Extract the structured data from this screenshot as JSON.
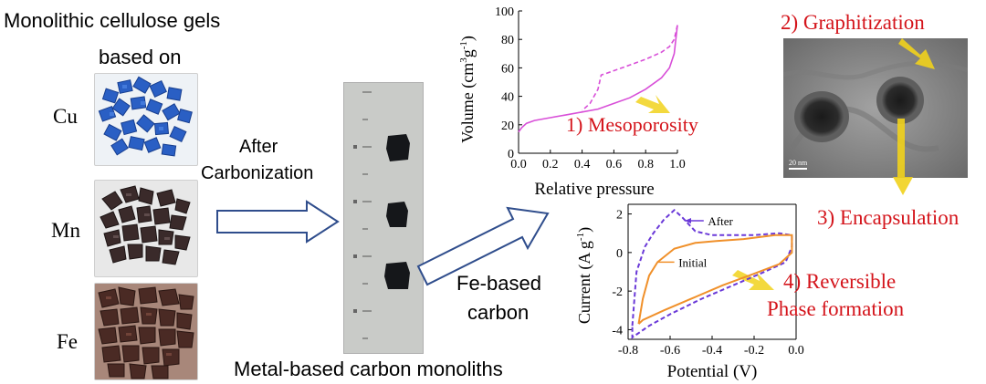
{
  "left_panel": {
    "title_line1": "Monolithic cellulose gels",
    "title_line2": "based on",
    "metals": [
      "Cu",
      "Mn",
      "Fe"
    ]
  },
  "arrow1_label_line1": "After",
  "arrow1_label_line2": "Carbonization",
  "monolith_caption": "Metal-based carbon monoliths",
  "arrow2_label_line1": "Fe-based",
  "arrow2_label_line2": "carbon",
  "steps": {
    "mesoporosity": "1) Mesoporosity",
    "graphitization": "2) Graphitization",
    "encapsulation": "3) Encapsulation",
    "reversible_line1": "4) Reversible",
    "reversible_line2": "Phase formation"
  },
  "tem_scale_label": "20 nm",
  "colors": {
    "step_red": "#d4141b",
    "arrow_blue": "#2f4d8c",
    "highlight_yellow": "#f1d21c",
    "iso_magenta": "#d84fd8",
    "cv_after": "#6a39d8",
    "cv_initial": "#f0902a"
  },
  "chart_data": [
    {
      "type": "line",
      "title": "",
      "xlabel": "Relative pressure",
      "ylabel": "Volume (cm³g⁻¹)",
      "ylabel_parts": {
        "main": "Volume (cm",
        "sup1": "3",
        "mid": "g",
        "sup2": "-1",
        "end": ")"
      },
      "xlim": [
        0,
        1.0
      ],
      "ylim": [
        0,
        100
      ],
      "xticks": [
        "0.0",
        "0.2",
        "0.4",
        "0.6",
        "0.8",
        "1.0"
      ],
      "yticks": [
        "0",
        "20",
        "40",
        "60",
        "80",
        "100"
      ],
      "series": [
        {
          "style": "solid",
          "x": [
            0.0,
            0.02,
            0.05,
            0.1,
            0.2,
            0.3,
            0.4,
            0.5,
            0.6,
            0.7,
            0.8,
            0.9,
            0.95,
            0.98,
            1.0
          ],
          "y": [
            15,
            18,
            21,
            23,
            25,
            27,
            29,
            31,
            35,
            39,
            45,
            53,
            60,
            70,
            90
          ]
        },
        {
          "style": "dashed",
          "x": [
            1.0,
            0.98,
            0.95,
            0.9,
            0.8,
            0.7,
            0.6,
            0.55,
            0.52,
            0.5,
            0.45,
            0.4
          ],
          "y": [
            90,
            80,
            75,
            71,
            66,
            62,
            58,
            56,
            55,
            45,
            35,
            30
          ]
        }
      ]
    },
    {
      "type": "line",
      "title": "",
      "xlabel": "Potential (V)",
      "ylabel": "Current (A g⁻¹)",
      "ylabel_parts": {
        "main": "Current (A g",
        "sup": "-1",
        "end": ")"
      },
      "xlim": [
        -0.8,
        0.0
      ],
      "ylim": [
        -4.5,
        2.5
      ],
      "xticks": [
        "-0.8",
        "-0.6",
        "-0.4",
        "-0.2",
        "0.0"
      ],
      "yticks": [
        "-4",
        "-2",
        "0",
        "2"
      ],
      "series": [
        {
          "name": "After",
          "style": "dashed",
          "points": [
            [
              -0.78,
              -3.8
            ],
            [
              -0.76,
              -1.0
            ],
            [
              -0.72,
              0.3
            ],
            [
              -0.68,
              1.0
            ],
            [
              -0.63,
              1.7
            ],
            [
              -0.58,
              2.2
            ],
            [
              -0.54,
              1.8
            ],
            [
              -0.48,
              1.1
            ],
            [
              -0.4,
              0.9
            ],
            [
              -0.3,
              0.9
            ],
            [
              -0.2,
              0.9
            ],
            [
              -0.08,
              1.0
            ],
            [
              -0.02,
              0.9
            ],
            [
              -0.02,
              0.3
            ],
            [
              -0.05,
              -0.5
            ],
            [
              -0.15,
              -1.0
            ],
            [
              -0.3,
              -1.7
            ],
            [
              -0.45,
              -2.4
            ],
            [
              -0.6,
              -3.2
            ],
            [
              -0.7,
              -3.8
            ],
            [
              -0.78,
              -4.4
            ],
            [
              -0.78,
              -3.8
            ]
          ]
        },
        {
          "name": "Initial",
          "style": "solid",
          "points": [
            [
              -0.75,
              -3.7
            ],
            [
              -0.73,
              -2.4
            ],
            [
              -0.7,
              -1.2
            ],
            [
              -0.66,
              -0.5
            ],
            [
              -0.58,
              0.2
            ],
            [
              -0.48,
              0.5
            ],
            [
              -0.38,
              0.6
            ],
            [
              -0.25,
              0.7
            ],
            [
              -0.1,
              0.9
            ],
            [
              -0.02,
              0.9
            ],
            [
              -0.02,
              0.0
            ],
            [
              -0.08,
              -0.6
            ],
            [
              -0.2,
              -1.1
            ],
            [
              -0.35,
              -1.7
            ],
            [
              -0.5,
              -2.4
            ],
            [
              -0.63,
              -3.0
            ],
            [
              -0.73,
              -3.5
            ],
            [
              -0.75,
              -3.7
            ]
          ]
        }
      ]
    }
  ]
}
